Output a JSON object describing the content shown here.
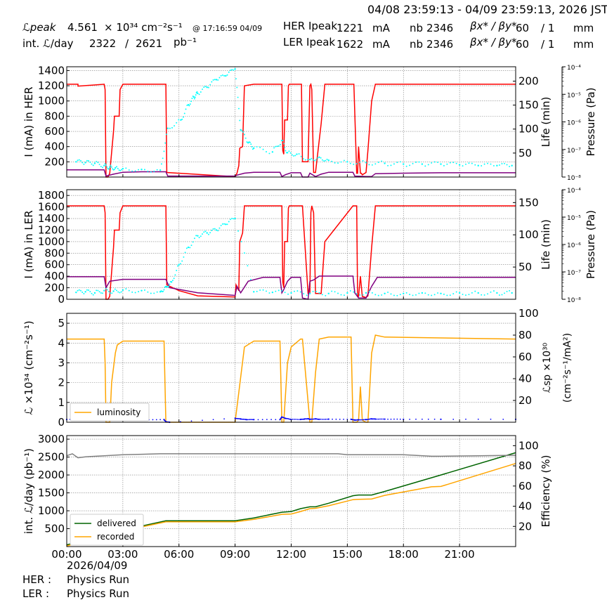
{
  "header": {
    "time_range": "04/08 23:59:13 - 04/09 23:59:13, 2026 JST",
    "lpeak_label": "ℒpeak",
    "lpeak_value": "4.561",
    "lpeak_unit": "× 10³⁴ cm⁻²s⁻¹",
    "lpeak_time": "@ 17:16:59 04/09",
    "intl_label": "int. ℒ/day",
    "intl_recorded": "2322",
    "intl_sep": "/",
    "intl_delivered": "2621",
    "intl_unit": "pb⁻¹",
    "her_ipeak_label": "HER Ipeak",
    "her_ipeak_value": "1221",
    "ler_ipeak_label": "LER Ipeak",
    "ler_ipeak_value": "1622",
    "ipeak_unit": "mA",
    "nb_label": "nb",
    "her_nb": "2346",
    "ler_nb": "2346",
    "beta_label": "βx* / βy*",
    "her_beta_x": "60",
    "her_beta_y": "/ 1",
    "ler_beta_x": "60",
    "ler_beta_y": "/ 1",
    "beta_unit": "mm"
  },
  "footer": {
    "date": "2026/04/09",
    "her_label": "HER :",
    "her_status": "Physics Run",
    "ler_label": "LER :",
    "ler_status": "Physics Run"
  },
  "colors": {
    "current": "#ff0000",
    "life": "#800080",
    "pressure": "#00ffff",
    "luminosity": "#ffa500",
    "specific_luminosity": "#0000ff",
    "delivered": "#006400",
    "recorded": "#ffa500",
    "efficiency": "#808080",
    "grid": "#808080"
  },
  "chart_data": [
    {
      "type": "line",
      "panel": "her",
      "ylabel": "I (mA) in HER",
      "ylabel_right": "Life (min)",
      "ylabel_pressure": "Pressure (Pa)",
      "xlim": [
        0,
        24
      ],
      "ylim": [
        0,
        1450
      ],
      "yticks": [
        200,
        400,
        600,
        800,
        1000,
        1200,
        1400
      ],
      "ylim_right": [
        0,
        230
      ],
      "yticks_right": [
        50,
        100,
        150,
        200
      ],
      "pressure_ticks": [
        "10⁻⁸",
        "10⁻⁷",
        "10⁻⁶",
        "10⁻⁵",
        "10⁻⁴"
      ],
      "grid": true,
      "series": [
        {
          "role": "current",
          "x": [
            0,
            0.6,
            0.6,
            2.0,
            2.05,
            2.1,
            2.2,
            2.3,
            2.5,
            2.55,
            2.8,
            2.85,
            3.0,
            3.05,
            5.3,
            5.35,
            9.0,
            9.1,
            9.2,
            9.25,
            9.4,
            9.5,
            10.0,
            11.5,
            11.55,
            11.6,
            11.65,
            11.8,
            11.85,
            11.9,
            11.95,
            12.5,
            12.55,
            12.6,
            12.9,
            13.0,
            13.05,
            13.1,
            13.2,
            13.3,
            13.6,
            13.8,
            15.3,
            15.35,
            15.5,
            15.55,
            15.6,
            15.7,
            15.75,
            15.8,
            16.0,
            16.1,
            16.3,
            16.5,
            24
          ],
          "y": [
            1220,
            1220,
            1195,
            1220,
            1150,
            0,
            0,
            50,
            600,
            800,
            800,
            1150,
            1220,
            1220,
            1220,
            60,
            5,
            50,
            150,
            380,
            400,
            1200,
            1220,
            1220,
            350,
            300,
            750,
            750,
            1200,
            1220,
            1220,
            1220,
            1220,
            200,
            200,
            1200,
            1220,
            1150,
            60,
            60,
            700,
            1220,
            1220,
            1220,
            50,
            50,
            400,
            50,
            50,
            30,
            60,
            350,
            1000,
            1220,
            1220
          ]
        },
        {
          "role": "life",
          "x": [
            0,
            2.0,
            2.1,
            2.5,
            3.0,
            4.0,
            5.3,
            5.4,
            9.0,
            9.1,
            9.5,
            10.0,
            11.4,
            11.5,
            11.7,
            12.0,
            12.5,
            12.6,
            12.9,
            13.0,
            13.3,
            13.6,
            14.0,
            15.3,
            15.4,
            16.0,
            16.3,
            16.5,
            18.0,
            20.0,
            24
          ],
          "y": [
            15,
            15,
            2,
            6,
            10,
            11,
            11,
            2,
            2,
            4,
            8,
            10,
            10,
            1,
            5,
            9,
            9,
            0,
            0,
            8,
            1,
            6,
            10,
            10,
            2,
            1,
            1,
            7,
            8,
            9,
            9
          ]
        },
        {
          "role": "pressure",
          "x": [
            0.5,
            1.0,
            1.5,
            2.0,
            2.3,
            2.6,
            3.0,
            4.0,
            5.0,
            5.4,
            6.1,
            6.5,
            6.8,
            7.0,
            7.5,
            8.0,
            8.5,
            9.0,
            9.3,
            9.7,
            10.0,
            11.0,
            11.5,
            11.8,
            12.3,
            13.0,
            13.5,
            14.0,
            15.0,
            16.0,
            17.0,
            18.0,
            19.0,
            20.0,
            21.0,
            22.0,
            23.0,
            23.8
          ],
          "y": [
            200,
            190,
            180,
            150,
            130,
            120,
            110,
            100,
            90,
            640,
            750,
            950,
            1050,
            1100,
            1180,
            1280,
            1330,
            1420,
            620,
            450,
            380,
            330,
            480,
            320,
            300,
            230,
            260,
            220,
            200,
            190,
            180,
            170,
            170,
            170,
            160,
            150,
            150,
            150
          ]
        }
      ]
    },
    {
      "type": "line",
      "panel": "ler",
      "ylabel": "I (mA) in LER",
      "ylabel_right": "Life (min)",
      "ylabel_pressure": "Pressure (Pa)",
      "xlim": [
        0,
        24
      ],
      "ylim": [
        0,
        1900
      ],
      "yticks": [
        0,
        200,
        400,
        600,
        800,
        1000,
        1200,
        1400,
        1600,
        1800
      ],
      "ylim_right": [
        0,
        170
      ],
      "yticks_right": [
        50,
        100,
        150
      ],
      "pressure_ticks": [
        "10⁻⁸",
        "10⁻⁷",
        "10⁻⁶",
        "10⁻⁵",
        "10⁻⁴"
      ],
      "grid": true,
      "series": [
        {
          "role": "current",
          "x": [
            0,
            2.0,
            2.05,
            2.1,
            2.2,
            2.3,
            2.5,
            2.55,
            2.8,
            2.85,
            3.0,
            5.3,
            5.35,
            6.0,
            7.0,
            9.0,
            9.05,
            9.2,
            9.25,
            9.4,
            9.5,
            10.0,
            11.5,
            11.55,
            11.6,
            11.65,
            11.8,
            11.85,
            11.9,
            12.5,
            12.6,
            12.9,
            13.0,
            13.05,
            13.1,
            13.2,
            13.3,
            13.6,
            13.8,
            15.3,
            15.35,
            15.5,
            15.55,
            15.6,
            15.7,
            15.8,
            16.0,
            16.1,
            16.3,
            16.5,
            24
          ],
          "y": [
            1620,
            1620,
            1500,
            0,
            0,
            50,
            900,
            1200,
            1200,
            1500,
            1620,
            1620,
            250,
            150,
            60,
            40,
            250,
            150,
            1000,
            1150,
            1620,
            1620,
            1620,
            300,
            200,
            1000,
            1000,
            1580,
            1620,
            1620,
            1620,
            100,
            100,
            1500,
            1620,
            1500,
            100,
            100,
            1000,
            1620,
            1620,
            1620,
            50,
            50,
            400,
            50,
            30,
            60,
            900,
            1620,
            1620
          ]
        },
        {
          "role": "life",
          "x": [
            0,
            2.0,
            2.1,
            2.3,
            3.0,
            4.0,
            5.3,
            5.5,
            7.0,
            9.0,
            9.1,
            9.3,
            9.7,
            10.5,
            11.4,
            11.5,
            11.6,
            11.8,
            12.0,
            12.5,
            12.6,
            12.9,
            13.0,
            13.2,
            13.5,
            14.0,
            15.3,
            15.4,
            15.6,
            16.0,
            16.3,
            16.6,
            18.0,
            24
          ],
          "y": [
            35,
            35,
            18,
            28,
            31,
            31,
            31,
            18,
            10,
            6,
            20,
            10,
            28,
            34,
            34,
            10,
            15,
            28,
            34,
            34,
            2,
            0,
            28,
            30,
            36,
            36,
            36,
            10,
            2,
            2,
            20,
            34,
            34,
            34
          ]
        },
        {
          "role": "pressure",
          "x": [
            0.5,
            1.0,
            1.5,
            2.0,
            2.5,
            3.0,
            4.0,
            5.0,
            5.3,
            5.6,
            6.0,
            6.5,
            7.0,
            7.5,
            8.0,
            8.5,
            9.0,
            10.0,
            11.0,
            12.0,
            13.0,
            14.0,
            15.0,
            16.0,
            17.0,
            18.0,
            19.0,
            20.0,
            21.0,
            22.0,
            23.0,
            23.8
          ],
          "y": [
            120,
            130,
            110,
            150,
            140,
            160,
            150,
            130,
            220,
            300,
            600,
            900,
            1100,
            1150,
            1200,
            1300,
            1400,
            130,
            120,
            110,
            100,
            100,
            110,
            110,
            100,
            100,
            110,
            100,
            110,
            110,
            110,
            110
          ]
        }
      ]
    },
    {
      "type": "line",
      "panel": "luminosity",
      "ylabel": "ℒ ×10³⁴ (cm⁻²s⁻¹)",
      "ylabel_right_1": "ℒsp ×10³⁰",
      "ylabel_right_2": "(cm⁻²s⁻¹/mA²)",
      "xlim": [
        0,
        24
      ],
      "ylim": [
        0,
        5.5
      ],
      "yticks": [
        0,
        1,
        2,
        3,
        4,
        5
      ],
      "ylim_right": [
        0,
        100
      ],
      "yticks_right": [
        20,
        40,
        60,
        80,
        100
      ],
      "legend": [
        "luminosity"
      ],
      "grid": true,
      "series": [
        {
          "name": "luminosity",
          "role": "luminosity",
          "x": [
            0,
            2.0,
            2.05,
            2.1,
            2.3,
            2.4,
            2.6,
            2.7,
            3.0,
            5.2,
            5.25,
            5.3,
            9.0,
            9.2,
            9.5,
            10.0,
            11.4,
            11.5,
            11.6,
            11.8,
            12.0,
            12.5,
            12.6,
            13.0,
            13.1,
            13.3,
            13.5,
            14.0,
            15.2,
            15.3,
            15.5,
            15.6,
            15.7,
            15.8,
            16.0,
            16.1,
            16.3,
            16.5,
            17.0,
            24
          ],
          "y": [
            4.2,
            4.2,
            3.0,
            0,
            0,
            2.0,
            3.5,
            3.9,
            4.1,
            4.1,
            2.0,
            0,
            0,
            1.5,
            3.8,
            4.1,
            4.1,
            0,
            0,
            3.0,
            3.8,
            4.2,
            4.2,
            0,
            0,
            2.5,
            4.2,
            4.3,
            4.3,
            0,
            0,
            0.1,
            1.8,
            0.1,
            0,
            0,
            3.5,
            4.4,
            4.3,
            4.2
          ]
        },
        {
          "role": "specific_luminosity",
          "x": [
            0,
            1.0,
            2.0,
            2.1,
            2.2,
            2.3,
            2.5,
            3.0,
            4.0,
            5.2,
            5.3,
            5.5,
            9.0,
            9.3,
            9.6,
            10.0,
            11.4,
            11.5,
            11.7,
            12.0,
            12.5,
            12.7,
            12.9,
            13.0,
            13.3,
            13.5,
            14.0,
            15.2,
            15.4,
            15.6,
            16.0,
            16.3,
            16.5,
            17.0,
            18.0,
            20.0,
            24
          ],
          "y": [
            2.5,
            2.5,
            2.5,
            3.6,
            4.1,
            3.0,
            2.6,
            2.3,
            2.35,
            2.4,
            0.5,
            0,
            3.6,
            3.0,
            2.4,
            2.4,
            2.4,
            4.8,
            3.5,
            2.6,
            2.6,
            2.9,
            3.2,
            2.7,
            3.1,
            2.7,
            2.8,
            2.7,
            2.0,
            2.2,
            2.4,
            3.1,
            2.9,
            2.8,
            2.7,
            2.7,
            2.65
          ]
        }
      ]
    },
    {
      "type": "line",
      "panel": "integrated",
      "ylabel": "int. ℒ/day (pb⁻¹)",
      "ylabel_right": "Efficiency (%)",
      "xlim": [
        0,
        24
      ],
      "xticks": [
        "00:00",
        "03:00",
        "06:00",
        "09:00",
        "12:00",
        "15:00",
        "18:00",
        "21:00"
      ],
      "ylim": [
        0,
        3100
      ],
      "yticks": [
        500,
        1000,
        1500,
        2000,
        2500,
        3000
      ],
      "ylim_right": [
        0,
        110
      ],
      "yticks_right": [
        20,
        40,
        60,
        80,
        100
      ],
      "legend": [
        "delivered",
        "recorded"
      ],
      "grid": true,
      "series": [
        {
          "name": "delivered",
          "role": "delivered",
          "x": [
            0,
            2.0,
            3.0,
            5.3,
            9.0,
            10.0,
            11.5,
            12.0,
            12.5,
            13.0,
            13.3,
            14.0,
            15.3,
            15.6,
            16.3,
            17.0,
            20.0,
            24
          ],
          "y": [
            50,
            310,
            460,
            720,
            720,
            800,
            960,
            980,
            1060,
            1110,
            1110,
            1210,
            1420,
            1440,
            1440,
            1540,
            2000,
            2621
          ]
        },
        {
          "name": "recorded",
          "role": "recorded",
          "x": [
            0,
            2.0,
            3.0,
            5.3,
            9.0,
            10.0,
            11.5,
            12.0,
            12.5,
            13.0,
            13.3,
            14.0,
            15.3,
            15.6,
            16.3,
            17.0,
            19.5,
            20.0,
            24
          ],
          "y": [
            20,
            290,
            440,
            690,
            690,
            760,
            900,
            910,
            980,
            1060,
            1070,
            1140,
            1310,
            1320,
            1330,
            1430,
            1670,
            1680,
            2322
          ]
        },
        {
          "role": "efficiency",
          "x": [
            0,
            0.3,
            0.6,
            1.0,
            2.0,
            3.0,
            4.0,
            5.0,
            6.0,
            9.0,
            11.0,
            13.0,
            14.5,
            15.0,
            18.0,
            19.5,
            20.0,
            22.0,
            24
          ],
          "y": [
            90,
            92,
            88,
            89,
            90,
            91,
            91.5,
            92,
            92,
            92,
            92,
            92,
            92,
            91,
            91,
            89.5,
            89.5,
            90,
            90.5
          ]
        }
      ]
    }
  ]
}
